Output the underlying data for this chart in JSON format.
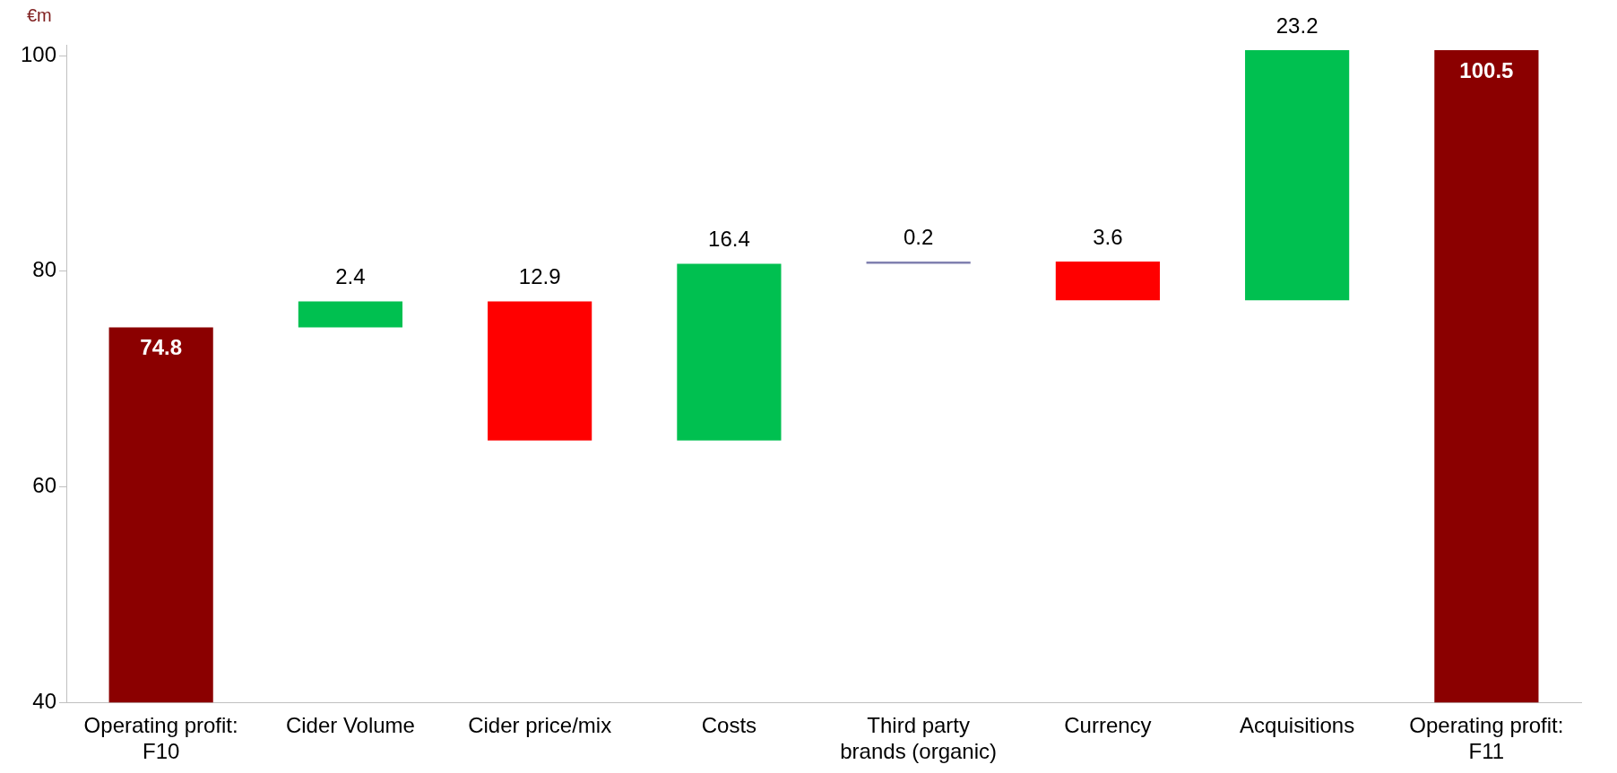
{
  "chart_data": {
    "type": "bar",
    "ylabel": "€m",
    "categories": [
      "Operating profit: F10",
      "Cider Volume",
      "Cider price/mix",
      "Costs",
      "Third party brands (organic)",
      "Currency",
      "Acquisitions",
      "Operating profit: F11"
    ],
    "base": [
      40,
      74.8,
      77.2,
      64.3,
      80.7,
      80.9,
      77.3,
      40
    ],
    "values": [
      34.8,
      2.4,
      -12.9,
      16.4,
      0.2,
      -3.6,
      23.2,
      60.5
    ],
    "value_labels": [
      "74.8",
      "2.4",
      "12.9",
      "16.4",
      "0.2",
      "3.6",
      "23.2",
      "100.5"
    ],
    "colors": [
      "#8b0000",
      "#00c050",
      "#ff0000",
      "#00c050",
      "#8080b0",
      "#ff0000",
      "#00c050",
      "#8b0000"
    ],
    "ylim": [
      40,
      101
    ],
    "yticks": [
      40,
      60,
      80,
      100
    ],
    "grid": false,
    "legend": false
  }
}
